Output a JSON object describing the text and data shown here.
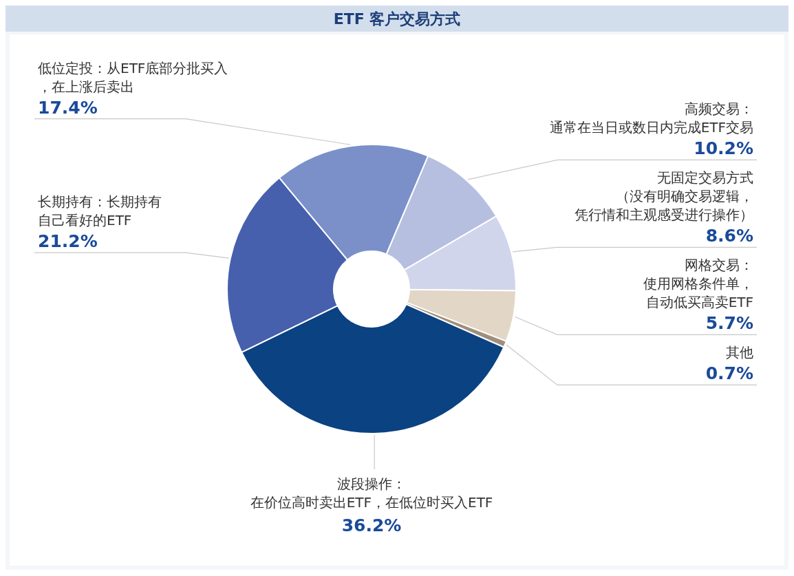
{
  "chart_data": {
    "type": "donut",
    "title": "ETF 客户交易方式",
    "categories": [
      "高频交易：通常在当日或数日内完成ETF交易",
      "无固定交易方式（没有明确交易逻辑，凭行情和主观感受进行操作）",
      "网格交易：使用网格条件单，自动低买高卖ETF",
      "其他",
      "波段操作：在价位高时卖出ETF，在低位时买入ETF",
      "长期持有：长期持有自己看好的ETF",
      "低位定投：从ETF底部分批买入，在上涨后卖出"
    ],
    "values": [
      10.2,
      8.6,
      5.7,
      0.7,
      36.2,
      21.2,
      17.4
    ],
    "colors": [
      "#b6bfe0",
      "#d0d5ec",
      "#e2d6c6",
      "#a08e7c",
      "#0a4282",
      "#4660ad",
      "#7b90c9"
    ],
    "value_labels": [
      "10.2%",
      "8.6%",
      "5.7%",
      "0.7%",
      "36.2%",
      "21.2%",
      "17.4%"
    ]
  }
}
